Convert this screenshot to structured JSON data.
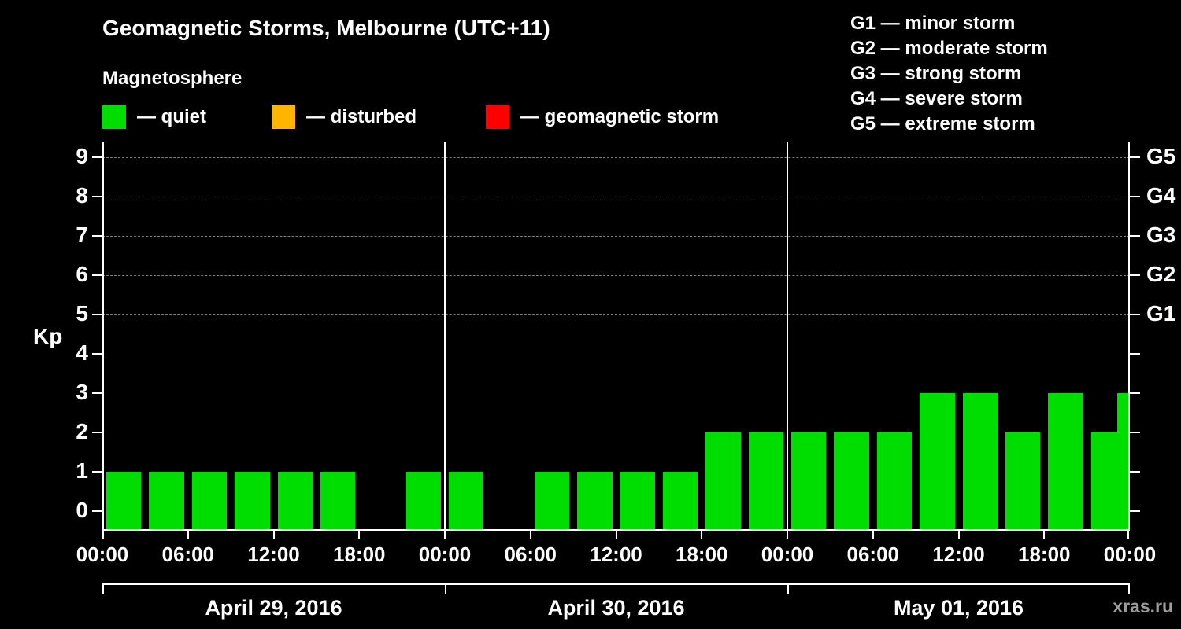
{
  "title": "Geomagnetic Storms, Melbourne (UTC+11)",
  "subtitle": "Magnetosphere",
  "watermark": "xras.ru",
  "kp_legend": [
    {
      "label": "— quiet",
      "color": "#00dd00"
    },
    {
      "label": "— disturbed",
      "color": "#ffb400"
    },
    {
      "label": "— geomagnetic storm",
      "color": "#ff0000"
    }
  ],
  "g_legend": [
    "G1 — minor storm",
    "G2 — moderate storm",
    "G3 — strong storm",
    "G4 — severe storm",
    "G5 — extreme storm"
  ],
  "chart_data": {
    "type": "bar",
    "title": "Geomagnetic Storms, Melbourne (UTC+11)",
    "subtitle": "Magnetosphere",
    "ylabel": "Kp",
    "ylim": [
      0,
      9.4
    ],
    "yticks": [
      0,
      1,
      2,
      3,
      4,
      5,
      6,
      7,
      8,
      9
    ],
    "gridlines_at": [
      5,
      6,
      7,
      8,
      9
    ],
    "right_ticks": [
      {
        "kp": 5,
        "label": "G1"
      },
      {
        "kp": 6,
        "label": "G2"
      },
      {
        "kp": 7,
        "label": "G3"
      },
      {
        "kp": 8,
        "label": "G4"
      },
      {
        "kp": 9,
        "label": "G5"
      }
    ],
    "x_tick_labels": [
      "00:00",
      "06:00",
      "12:00",
      "18:00",
      "00:00",
      "06:00",
      "12:00",
      "18:00",
      "00:00",
      "06:00",
      "12:00",
      "18:00",
      "00:00"
    ],
    "interval_hours": 3,
    "bar_color": "#00dd00",
    "days": [
      {
        "date": "April 29, 2016",
        "values": [
          1,
          1,
          1,
          1,
          1,
          1,
          null,
          1
        ]
      },
      {
        "date": "April 30, 2016",
        "values": [
          1,
          null,
          1,
          1,
          1,
          1,
          2,
          2
        ]
      },
      {
        "date": "May 01, 2016",
        "values": [
          2,
          2,
          2,
          3,
          3,
          2,
          3,
          2
        ]
      }
    ],
    "next_partial_value": 3,
    "legend_position": "top",
    "grid": "dashed-top-levels-only"
  }
}
